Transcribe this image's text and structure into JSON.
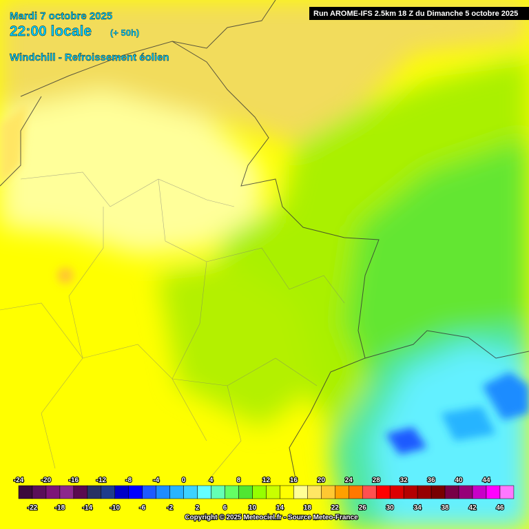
{
  "header": {
    "date": "Mardi 7 octobre 2025",
    "time": "22:00 locale",
    "offset": "(+ 50h)",
    "parameter": "Windchill - Refroissement éolien",
    "run": "Run AROME-IFS 2.5km 18 Z du Dimanche 5 octobre 2025"
  },
  "legend": {
    "values": [
      -24,
      -22,
      -20,
      -18,
      -16,
      -14,
      -12,
      -10,
      -8,
      -6,
      -4,
      -2,
      0,
      2,
      4,
      6,
      8,
      10,
      12,
      14,
      16,
      18,
      20,
      22,
      24,
      26,
      28,
      30,
      32,
      34,
      36,
      38,
      40,
      42,
      44,
      46
    ],
    "colors": [
      "#3c0a3c",
      "#5a0f5a",
      "#7d1478",
      "#8c288c",
      "#5a0a50",
      "#283264",
      "#1e3c8c",
      "#0000c8",
      "#0000ff",
      "#1e5aff",
      "#1e8cff",
      "#28b4ff",
      "#3cd2ff",
      "#64ffff",
      "#64ffb4",
      "#64ff64",
      "#50e632",
      "#96ff00",
      "#c8ff00",
      "#ffff00",
      "#ffff96",
      "#ffe664",
      "#ffc832",
      "#ffa000",
      "#ff7800",
      "#ff5050",
      "#ff0000",
      "#dc0000",
      "#b40000",
      "#960000",
      "#780000",
      "#780046",
      "#960078",
      "#c800c8",
      "#ff00ff",
      "#ff78ff"
    ]
  },
  "footer": {
    "copyright": "Copyright © 2025 Meteociel.fr - Source Meteo-France"
  }
}
